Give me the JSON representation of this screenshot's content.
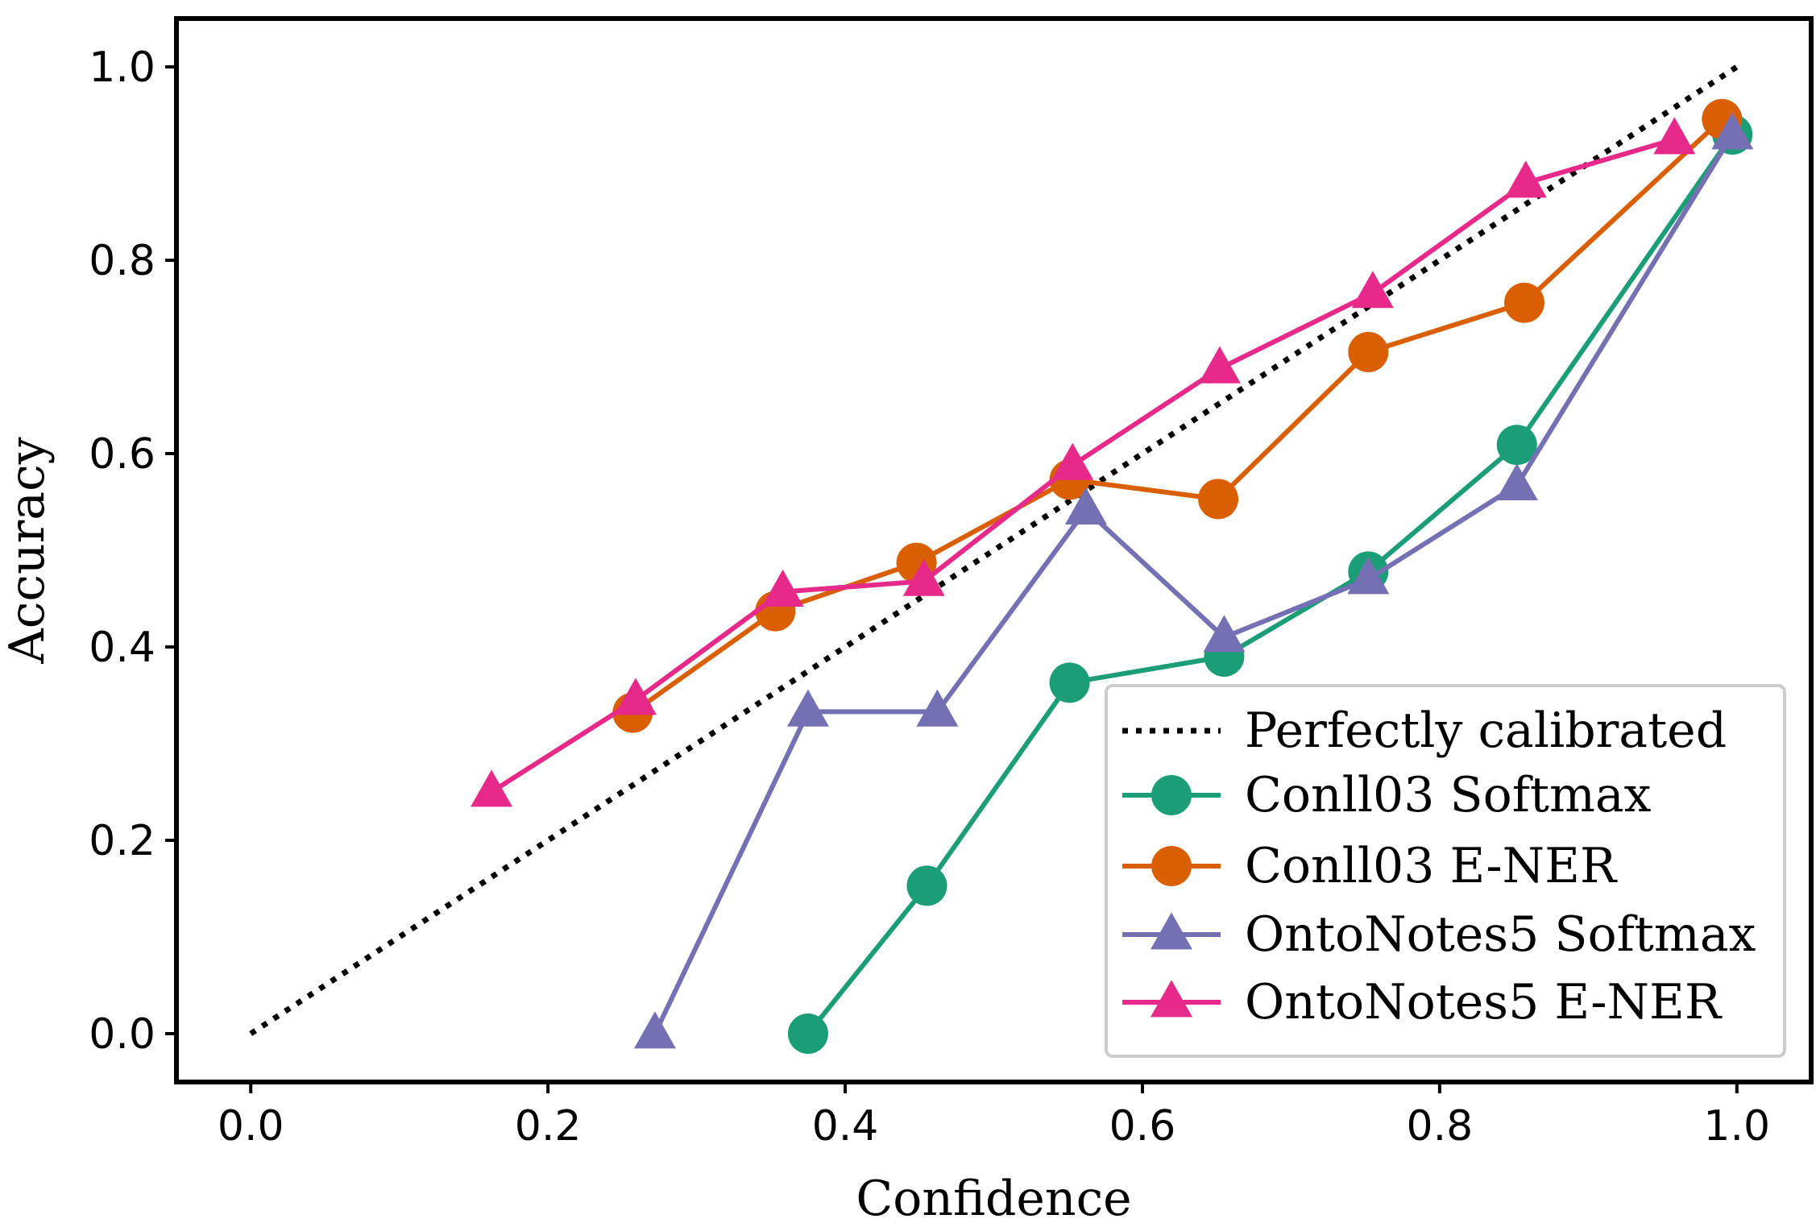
{
  "chart_data": {
    "type": "line",
    "title": "",
    "xlabel": "Confidence",
    "ylabel": "Accuracy",
    "xlim": [
      -0.05,
      1.05
    ],
    "ylim": [
      -0.05,
      1.05
    ],
    "xticks": [
      0.0,
      0.2,
      0.4,
      0.6,
      0.8,
      1.0
    ],
    "yticks": [
      0.0,
      0.2,
      0.4,
      0.6,
      0.8,
      1.0
    ],
    "xtick_labels": [
      "0.0",
      "0.2",
      "0.4",
      "0.6",
      "0.8",
      "1.0"
    ],
    "ytick_labels": [
      "0.0",
      "0.2",
      "0.4",
      "0.6",
      "0.8",
      "1.0"
    ],
    "grid": false,
    "legend_position": "lower-right",
    "reference": {
      "name": "Perfectly calibrated",
      "x": [
        0.0,
        1.0
      ],
      "y": [
        0.0,
        1.0
      ],
      "color": "#000000",
      "style": "dotted"
    },
    "series": [
      {
        "name": "Conll03 Softmax",
        "color": "#1b9e77",
        "marker": "circle",
        "x": [
          0.375,
          0.455,
          0.551,
          0.655,
          0.752,
          0.852,
          0.997
        ],
        "y": [
          0.0,
          0.153,
          0.363,
          0.39,
          0.478,
          0.609,
          0.93
        ]
      },
      {
        "name": "Conll03 E-NER",
        "color": "#d95f02",
        "marker": "circle",
        "x": [
          0.257,
          0.353,
          0.448,
          0.551,
          0.651,
          0.752,
          0.857,
          0.99
        ],
        "y": [
          0.332,
          0.437,
          0.487,
          0.573,
          0.553,
          0.705,
          0.756,
          0.946
        ]
      },
      {
        "name": "OntoNotes5 Softmax",
        "color": "#7570b3",
        "marker": "triangle",
        "x": [
          0.272,
          0.375,
          0.462,
          0.562,
          0.655,
          0.752,
          0.852,
          0.997
        ],
        "y": [
          0.0,
          0.333,
          0.333,
          0.542,
          0.41,
          0.47,
          0.567,
          0.93
        ]
      },
      {
        "name": "OntoNotes5 E-NER",
        "color": "#e7298a",
        "marker": "triangle",
        "x": [
          0.162,
          0.259,
          0.358,
          0.453,
          0.553,
          0.652,
          0.755,
          0.858,
          0.958
        ],
        "y": [
          0.25,
          0.345,
          0.457,
          0.468,
          0.588,
          0.688,
          0.766,
          0.88,
          0.925
        ]
      }
    ]
  }
}
